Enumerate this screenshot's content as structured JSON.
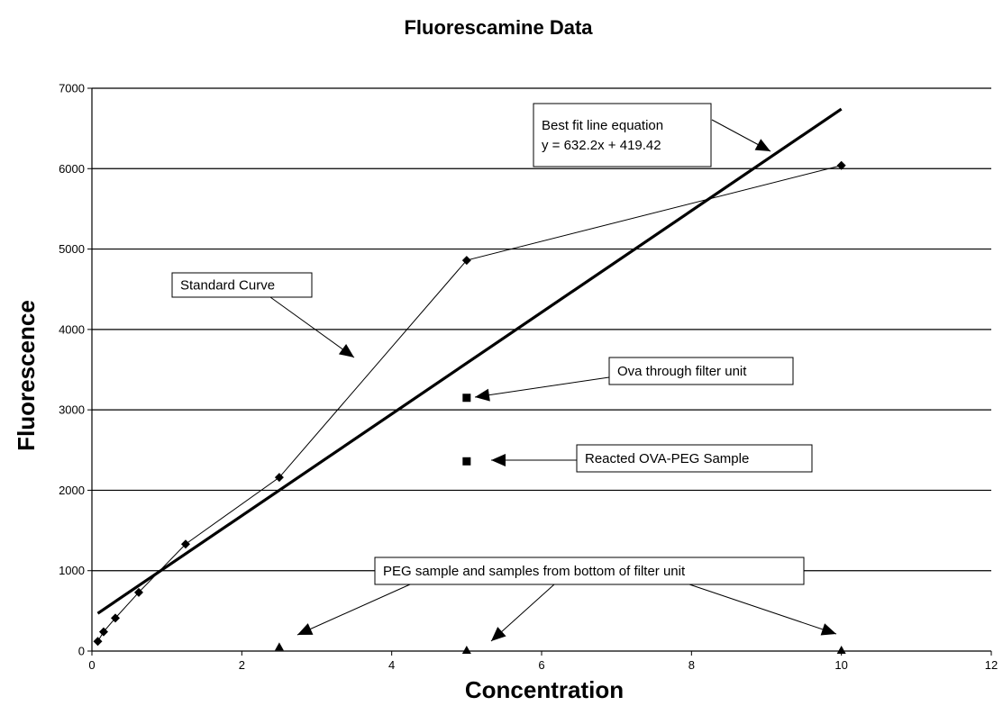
{
  "chart_data": {
    "type": "scatter",
    "title": "Fluorescamine Data",
    "xlabel": "Concentration",
    "ylabel": "Fluorescence",
    "xlim": [
      0,
      12
    ],
    "ylim": [
      0,
      7000
    ],
    "x_ticks": [
      "0",
      "2",
      "4",
      "6",
      "8",
      "10",
      "12"
    ],
    "y_ticks": [
      "0",
      "1000",
      "2000",
      "3000",
      "4000",
      "5000",
      "6000",
      "7000"
    ],
    "grid": "horizontal",
    "legend": "none",
    "series": [
      {
        "marker": "diamond",
        "line": true,
        "points": [
          {
            "x": 0.078,
            "y": 120
          },
          {
            "x": 0.156,
            "y": 240
          },
          {
            "x": 0.3125,
            "y": 410
          },
          {
            "x": 0.625,
            "y": 730
          },
          {
            "x": 1.25,
            "y": 1330
          },
          {
            "x": 2.5,
            "y": 2160
          },
          {
            "x": 5,
            "y": 4860
          },
          {
            "x": 10,
            "y": 6040
          }
        ]
      },
      {
        "marker": "square",
        "line": false,
        "points": [
          {
            "x": 5,
            "y": 3150
          },
          {
            "x": 5,
            "y": 2360
          }
        ]
      },
      {
        "marker": "triangle",
        "line": false,
        "points": [
          {
            "x": 2.5,
            "y": 40
          },
          {
            "x": 5,
            "y": 0
          },
          {
            "x": 10,
            "y": 0
          }
        ]
      }
    ],
    "trendline": {
      "slope": 632.2,
      "intercept": 419.42,
      "x_range": [
        0.078,
        10
      ]
    },
    "annotations": [
      {
        "lines": [
          "Best fit line equation",
          "y = 632.2x + 419.42"
        ]
      },
      {
        "lines": [
          "Standard Curve"
        ]
      },
      {
        "lines": [
          "Ova through filter unit"
        ]
      },
      {
        "lines": [
          "Reacted OVA-PEG Sample"
        ]
      },
      {
        "lines": [
          "PEG sample and samples from bottom of filter unit"
        ]
      }
    ]
  }
}
